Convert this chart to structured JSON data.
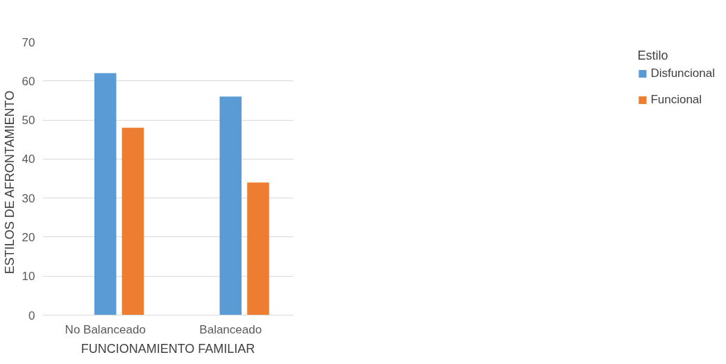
{
  "chart_data": {
    "type": "bar",
    "xlabel": "FUNCIONAMIENTO FAMILIAR",
    "ylabel": "ESTILOS  DE  AFRONTAMIENTO",
    "legend_title": "Estilo",
    "categories": [
      "No Balanceado",
      "Balanceado"
    ],
    "series": [
      {
        "name": "Disfuncional",
        "color": "#5b9bd5",
        "values": [
          62,
          56
        ]
      },
      {
        "name": "Funcional",
        "color": "#ed7d31",
        "values": [
          48,
          34
        ]
      }
    ],
    "ylim": [
      0,
      70
    ],
    "yticks": [
      0,
      10,
      20,
      30,
      40,
      50,
      60,
      70
    ],
    "grid": "y",
    "legend": "right"
  }
}
